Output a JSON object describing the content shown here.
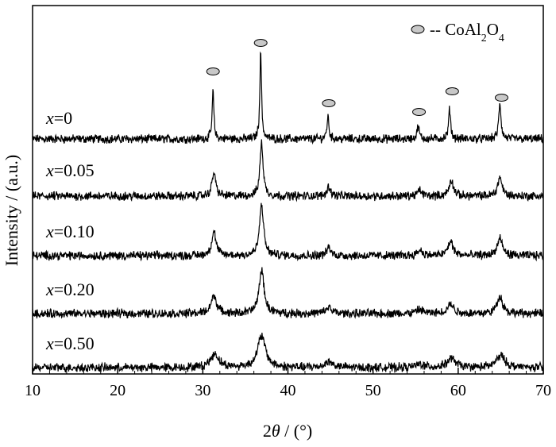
{
  "chart_data": {
    "type": "line",
    "xlabel_prefix": "2",
    "xlabel_symbol": "θ",
    "xlabel_suffix": " / (°)",
    "ylabel": "Intensity / (a.u.)",
    "xlim": [
      10,
      70
    ],
    "xticks": [
      "10",
      "20",
      "30",
      "40",
      "50",
      "60",
      "70"
    ],
    "legend": {
      "marker": "ellipse",
      "prefix": "-- CoAl",
      "sub1": "2",
      "mid": "O",
      "sub2": "4",
      "placement": "top-right"
    },
    "marker_color": "#c8c8c8",
    "line_color": "#000000",
    "peak_markers_x": [
      31.2,
      36.8,
      44.8,
      55.4,
      59.3,
      65.1
    ],
    "series": [
      {
        "name_var": "x",
        "name_val": "=0",
        "peaks": [
          [
            31.2,
            60,
            0.12
          ],
          [
            36.8,
            110,
            0.12
          ],
          [
            44.7,
            28,
            0.14
          ],
          [
            55.3,
            16,
            0.16
          ],
          [
            59.0,
            38,
            0.14
          ],
          [
            64.9,
            45,
            0.16
          ]
        ]
      },
      {
        "name_var": "x",
        "name_val": "=0.05",
        "peaks": [
          [
            31.3,
            30,
            0.25
          ],
          [
            36.9,
            68,
            0.22
          ],
          [
            44.8,
            12,
            0.25
          ],
          [
            55.5,
            7,
            0.3
          ],
          [
            59.2,
            20,
            0.3
          ],
          [
            64.9,
            24,
            0.3
          ]
        ]
      },
      {
        "name_var": "x",
        "name_val": "=0.10",
        "peaks": [
          [
            31.3,
            30,
            0.3
          ],
          [
            36.9,
            65,
            0.28
          ],
          [
            44.8,
            10,
            0.3
          ],
          [
            55.5,
            7,
            0.35
          ],
          [
            59.1,
            18,
            0.35
          ],
          [
            64.9,
            22,
            0.35
          ]
        ]
      },
      {
        "name_var": "x",
        "name_val": "=0.20",
        "peaks": [
          [
            31.3,
            22,
            0.4
          ],
          [
            36.9,
            55,
            0.35
          ],
          [
            44.8,
            8,
            0.4
          ],
          [
            55.5,
            5,
            0.45
          ],
          [
            59.1,
            12,
            0.45
          ],
          [
            64.9,
            22,
            0.4
          ]
        ]
      },
      {
        "name_var": "x",
        "name_val": "=0.50",
        "peaks": [
          [
            31.4,
            17,
            0.6
          ],
          [
            36.9,
            40,
            0.55
          ],
          [
            44.8,
            7,
            0.6
          ],
          [
            55.5,
            4,
            0.6
          ],
          [
            59.2,
            11,
            0.6
          ],
          [
            65.0,
            15,
            0.6
          ]
        ]
      }
    ]
  }
}
